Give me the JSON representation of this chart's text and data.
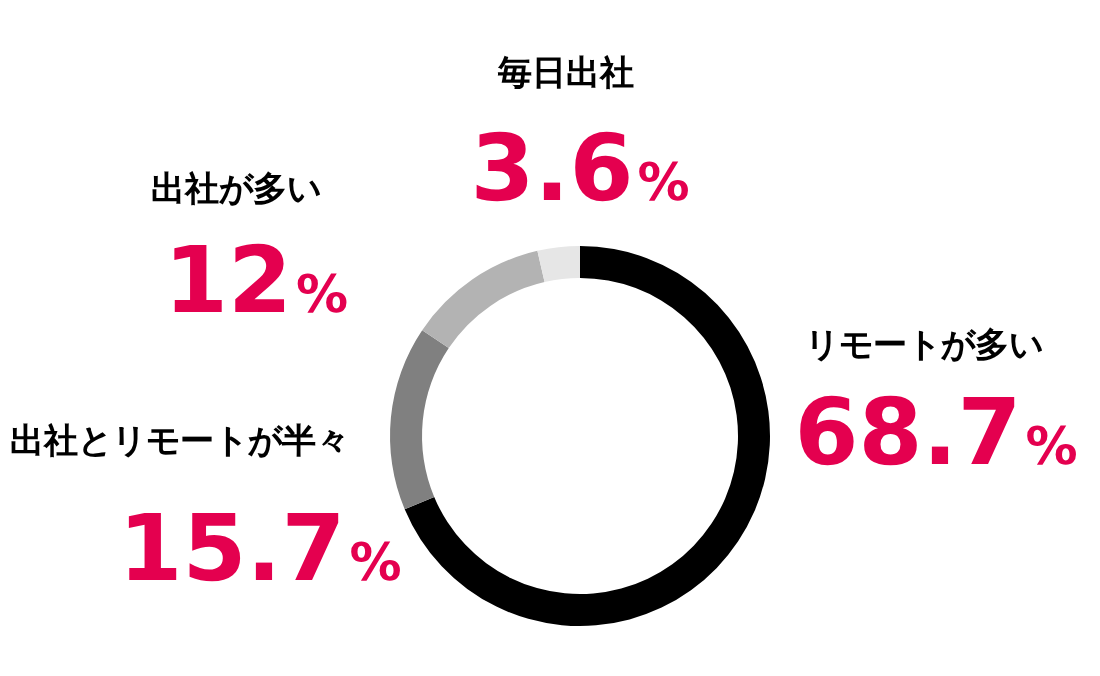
{
  "chart_data": {
    "type": "donut",
    "categories": [
      "リモートが多い",
      "出社とリモートが半々",
      "出社が多い",
      "毎日出社"
    ],
    "values": [
      68.7,
      15.7,
      12,
      3.6
    ],
    "colors": [
      "#000000",
      "#808080",
      "#b3b3b3",
      "#e6e6e6"
    ],
    "value_labels": [
      "68.7%",
      "15.7%",
      "12%",
      "3.6%"
    ]
  }
}
